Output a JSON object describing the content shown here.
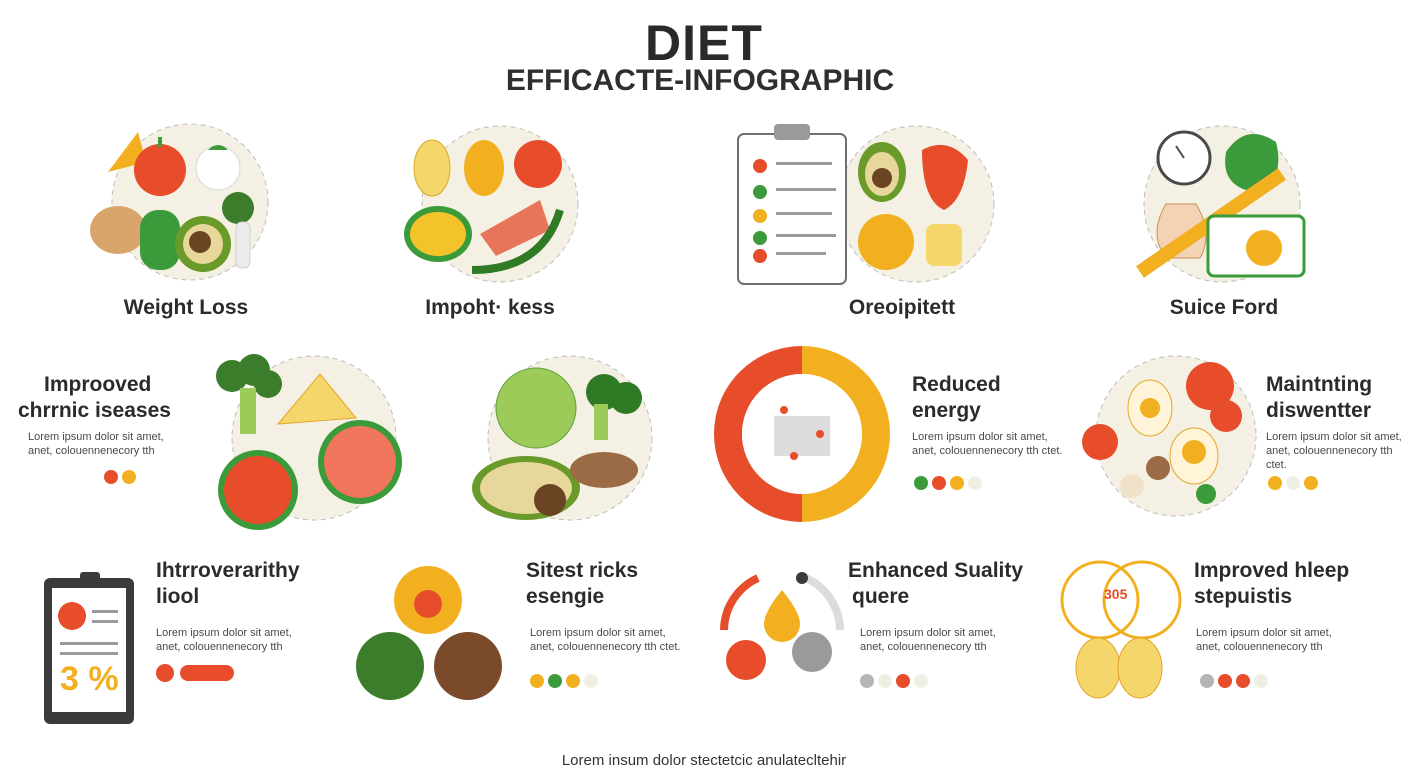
{
  "header": {
    "title": "DIET",
    "subtitle": "EFFICACTE-INFOGRAPHIC"
  },
  "row1": [
    {
      "label": "Weight Loss",
      "icon": "food-plate-fruits-vegetables-icon"
    },
    {
      "label": "Impoht· kess",
      "icon": "food-plate-fish-fruits-icon"
    },
    {
      "label": "Oreoipitett",
      "icon": "clipboard-checklist-icon"
    },
    {
      "label": "Suice Ford",
      "icon": "measuring-tape-icon"
    }
  ],
  "row2": [
    {
      "title_line1": "Improoved",
      "title_line2": "chrrnic iseases",
      "text": "Lorem ipsum dolor sit amet, anet, colouennenecory tth",
      "dots": [
        "#e74c2b",
        "#f2b021"
      ]
    },
    {
      "title_line1": "Reduced",
      "title_line2": "energy",
      "text": "Lorem ipsum dolor sit amet, anet, colouennenecory tth ctet.",
      "dots": [
        "#3b9a3a",
        "#e74c2b",
        "#f2b021",
        "#efefe4"
      ]
    },
    {
      "title_line1": "Maintnting",
      "title_line2": "diswentter",
      "text": "Lorem ipsum dolor sit amet, anet, colouennenecory tth ctet.",
      "dots": [
        "#f2b021",
        "#efefe4",
        "#f2b021"
      ]
    }
  ],
  "row3": [
    {
      "title_line1": "Ihtrroverarithy",
      "title_line2": "liool",
      "text": "Lorem ipsum dolor sit amet, anet, colouennenecory tth",
      "phone_value": "3 %",
      "dots": [
        "#e74c2b"
      ]
    },
    {
      "title_line1": "Sitest ricks",
      "title_line2": "esengie",
      "text": "Lorem ipsum dolor sit amet, anet, colouennenecory tth ctet.",
      "dots": [
        "#f2b021",
        "#3b9a3a",
        "#f2b021",
        "#efefe4"
      ]
    },
    {
      "title_line1": "Enhanced Suality",
      "title_line2": "quere",
      "text": "Lorem ipsum dolor sit amet, anet, colouennenecory tth",
      "dots": [
        "#b5b5b5",
        "#efefe4",
        "#e74c2b",
        "#efefe4"
      ]
    },
    {
      "title_line1": "Improved hleep",
      "title_line2": "stepuistis",
      "text": "Lorem ipsum dolor sit amet, anet, colouennenecory tth",
      "badge": "305",
      "dots": [
        "#b5b5b5",
        "#e74c2b",
        "#e74c2b",
        "#efefe4"
      ]
    }
  ],
  "footer": {
    "text": "Lorem insum dolor stectetcic anulatecltehir"
  },
  "colors": {
    "red": "#e74c2b",
    "yellow": "#f2b021",
    "green": "#3b9a3a",
    "cream": "#f4f1e4",
    "dark": "#2b2b2b"
  }
}
